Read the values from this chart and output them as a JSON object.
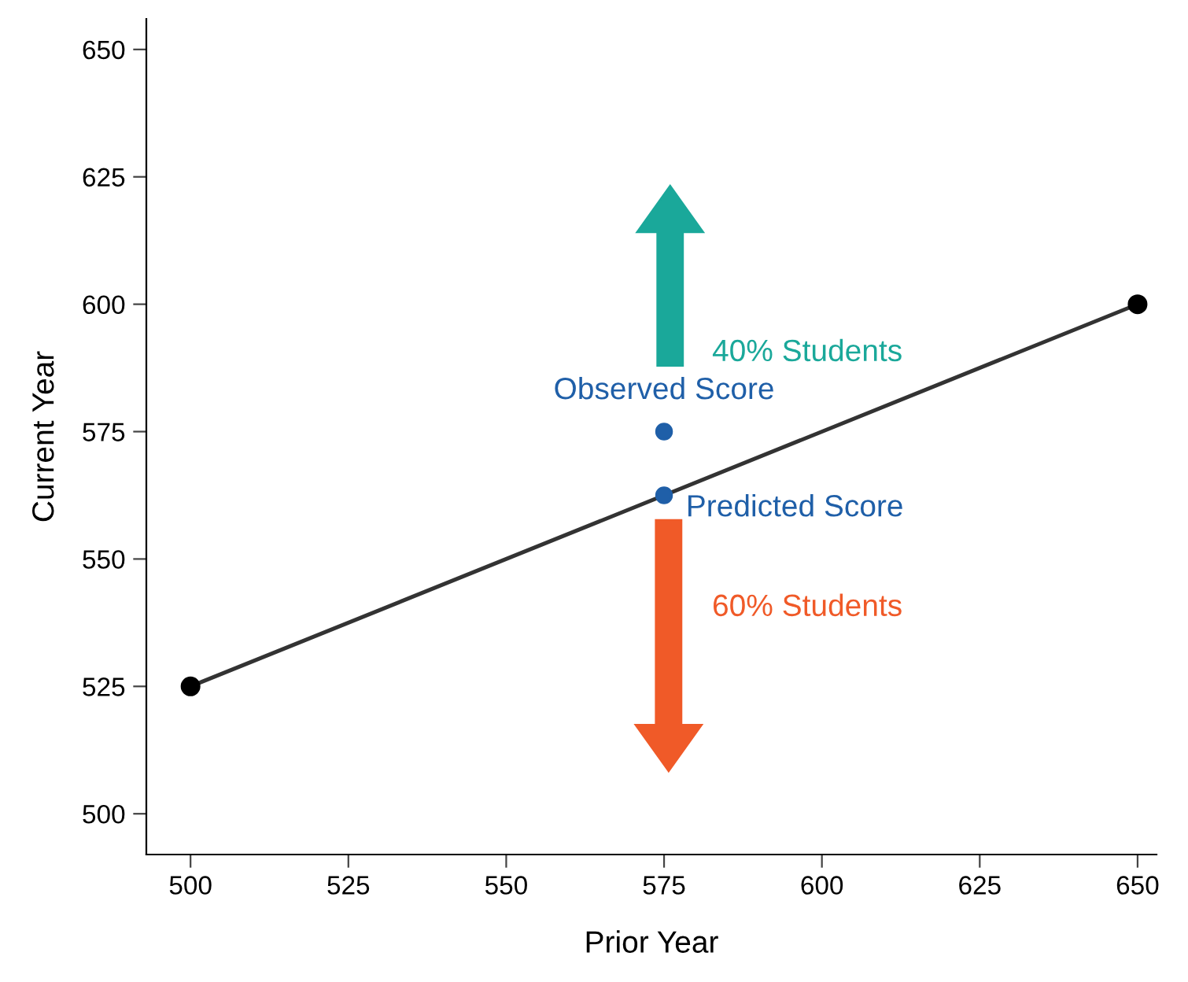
{
  "chart_data": {
    "type": "line",
    "xlabel": "Prior Year",
    "ylabel": "Current Year",
    "xlim": [
      493,
      653
    ],
    "ylim": [
      492,
      656
    ],
    "xticks": [
      500,
      525,
      550,
      575,
      600,
      625,
      650
    ],
    "yticks": [
      500,
      525,
      550,
      575,
      600,
      625,
      650
    ],
    "grid": false,
    "marker": "circle",
    "line_style": "solid",
    "series": [
      {
        "color": "#333333",
        "x": [
          500,
          650
        ],
        "values": [
          525,
          600
        ]
      },
      {
        "type": "scatter",
        "color": "#1f5fa8",
        "x": [
          575,
          575
        ],
        "values": [
          575,
          562.5
        ]
      }
    ],
    "annotations": [
      {
        "text": "Observed Score",
        "x": 575,
        "y": 575
      },
      {
        "text": "Predicted Score",
        "x": 575,
        "y": 562.5
      },
      "40% Students",
      "60% Students"
    ]
  }
}
